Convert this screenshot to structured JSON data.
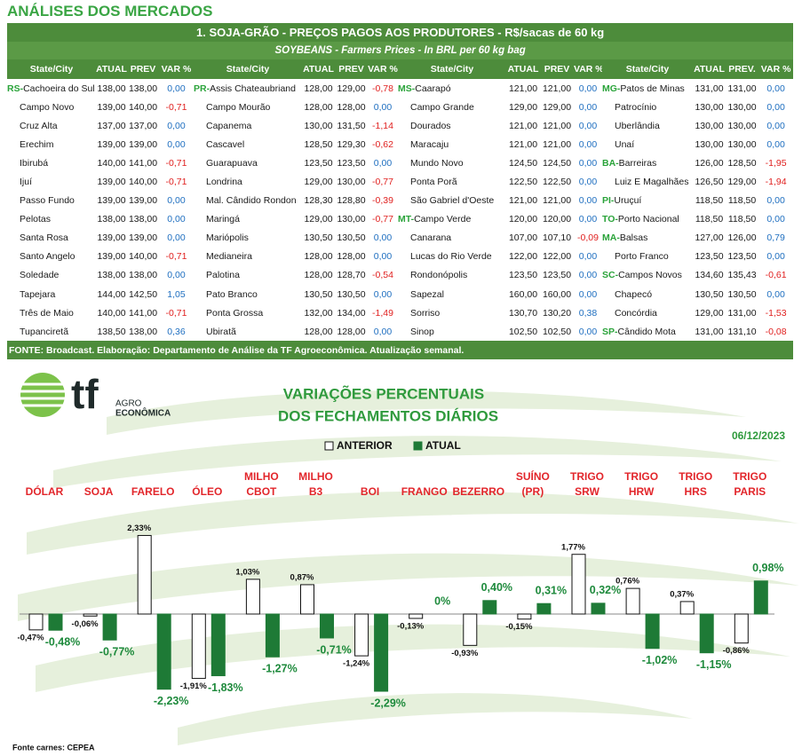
{
  "header": {
    "title": "ANÁLISES DOS MERCADOS"
  },
  "table": {
    "title": "1. SOJA-GRÃO - PREÇOS PAGOS AOS PRODUTORES - R$/sacas de 60 kg",
    "subtitle": "SOYBEANS - Farmers Prices - In BRL per 60 kg bag",
    "columns": [
      [
        "State/City",
        "ATUAL",
        "PREV",
        "VAR %"
      ],
      [
        "State/City",
        "ATUAL",
        "PREV",
        "VAR %"
      ],
      [
        "State/City",
        "ATUAL",
        "PREV",
        "VAR %"
      ],
      [
        "State/City",
        "ATUAL",
        "PREV.",
        "VAR %"
      ]
    ],
    "rows": [
      [
        {
          "state": "RS-",
          "city": "Cachoeira do Sul",
          "atual": "138,00",
          "prev": "138,00",
          "var": "0,00"
        },
        {
          "state": "PR-",
          "city": "Assis Chateaubriand",
          "atual": "128,00",
          "prev": "129,00",
          "var": "-0,78"
        },
        {
          "state": "MS-",
          "city": "Caarapó",
          "atual": "121,00",
          "prev": "121,00",
          "var": "0,00"
        },
        {
          "state": "MG-",
          "city": "Patos de Minas",
          "atual": "131,00",
          "prev": "131,00",
          "var": "0,00"
        }
      ],
      [
        {
          "city": "Campo Novo",
          "atual": "139,00",
          "prev": "140,00",
          "var": "-0,71"
        },
        {
          "city": "Campo Mourão",
          "atual": "128,00",
          "prev": "128,00",
          "var": "0,00"
        },
        {
          "city": "Campo Grande",
          "atual": "129,00",
          "prev": "129,00",
          "var": "0,00"
        },
        {
          "city": "Patrocínio",
          "atual": "130,00",
          "prev": "130,00",
          "var": "0,00"
        }
      ],
      [
        {
          "city": "Cruz Alta",
          "atual": "137,00",
          "prev": "137,00",
          "var": "0,00"
        },
        {
          "city": "Capanema",
          "atual": "130,00",
          "prev": "131,50",
          "var": "-1,14"
        },
        {
          "city": "Dourados",
          "atual": "121,00",
          "prev": "121,00",
          "var": "0,00"
        },
        {
          "city": "Uberlândia",
          "atual": "130,00",
          "prev": "130,00",
          "var": "0,00"
        }
      ],
      [
        {
          "city": "Erechim",
          "atual": "139,00",
          "prev": "139,00",
          "var": "0,00"
        },
        {
          "city": "Cascavel",
          "atual": "128,50",
          "prev": "129,30",
          "var": "-0,62"
        },
        {
          "city": "Maracaju",
          "atual": "121,00",
          "prev": "121,00",
          "var": "0,00"
        },
        {
          "city": "Unaí",
          "atual": "130,00",
          "prev": "130,00",
          "var": "0,00"
        }
      ],
      [
        {
          "city": "Ibirubá",
          "atual": "140,00",
          "prev": "141,00",
          "var": "-0,71"
        },
        {
          "city": "Guarapuava",
          "atual": "123,50",
          "prev": "123,50",
          "var": "0,00"
        },
        {
          "city": "Mundo Novo",
          "atual": "124,50",
          "prev": "124,50",
          "var": "0,00"
        },
        {
          "state": "BA-",
          "city": "Barreiras",
          "atual": "126,00",
          "prev": "128,50",
          "var": "-1,95"
        }
      ],
      [
        {
          "city": "Ijuí",
          "atual": "139,00",
          "prev": "140,00",
          "var": "-0,71"
        },
        {
          "city": "Londrina",
          "atual": "129,00",
          "prev": "130,00",
          "var": "-0,77"
        },
        {
          "city": "Ponta Porã",
          "atual": "122,50",
          "prev": "122,50",
          "var": "0,00"
        },
        {
          "city": "Luiz E Magalhães",
          "atual": "126,50",
          "prev": "129,00",
          "var": "-1,94"
        }
      ],
      [
        {
          "city": "Passo Fundo",
          "atual": "139,00",
          "prev": "139,00",
          "var": "0,00"
        },
        {
          "city": "Mal. Cândido Rondon",
          "atual": "128,30",
          "prev": "128,80",
          "var": "-0,39"
        },
        {
          "city": "São Gabriel d'Oeste",
          "atual": "121,00",
          "prev": "121,00",
          "var": "0,00"
        },
        {
          "state": "PI-",
          "city": "Uruçuí",
          "atual": "118,50",
          "prev": "118,50",
          "var": "0,00"
        }
      ],
      [
        {
          "city": "Pelotas",
          "atual": "138,00",
          "prev": "138,00",
          "var": "0,00"
        },
        {
          "city": "Maringá",
          "atual": "129,00",
          "prev": "130,00",
          "var": "-0,77"
        },
        {
          "state": "MT-",
          "city": "Campo Verde",
          "atual": "120,00",
          "prev": "120,00",
          "var": "0,00"
        },
        {
          "state": "TO-",
          "city": "Porto Nacional",
          "atual": "118,50",
          "prev": "118,50",
          "var": "0,00"
        }
      ],
      [
        {
          "city": "Santa Rosa",
          "atual": "139,00",
          "prev": "139,00",
          "var": "0,00"
        },
        {
          "city": "Mariópolis",
          "atual": "130,50",
          "prev": "130,50",
          "var": "0,00"
        },
        {
          "city": "Canarana",
          "atual": "107,00",
          "prev": "107,10",
          "var": "-0,09"
        },
        {
          "state": "MA-",
          "city": "Balsas",
          "atual": "127,00",
          "prev": "126,00",
          "var": "0,79"
        }
      ],
      [
        {
          "city": "Santo Angelo",
          "atual": "139,00",
          "prev": "140,00",
          "var": "-0,71"
        },
        {
          "city": "Medianeira",
          "atual": "128,00",
          "prev": "128,00",
          "var": "0,00"
        },
        {
          "city": "Lucas do Rio Verde",
          "atual": "122,00",
          "prev": "122,00",
          "var": "0,00"
        },
        {
          "city": "Porto Franco",
          "atual": "123,50",
          "prev": "123,50",
          "var": "0,00"
        }
      ],
      [
        {
          "city": "Soledade",
          "atual": "138,00",
          "prev": "138,00",
          "var": "0,00"
        },
        {
          "city": "Palotina",
          "atual": "128,00",
          "prev": "128,70",
          "var": "-0,54"
        },
        {
          "city": "Rondonópolis",
          "atual": "123,50",
          "prev": "123,50",
          "var": "0,00"
        },
        {
          "state": "SC-",
          "city": "Campos Novos",
          "atual": "134,60",
          "prev": "135,43",
          "var": "-0,61"
        }
      ],
      [
        {
          "city": "Tapejara",
          "atual": "144,00",
          "prev": "142,50",
          "var": "1,05"
        },
        {
          "city": "Pato Branco",
          "atual": "130,50",
          "prev": "130,50",
          "var": "0,00"
        },
        {
          "city": "Sapezal",
          "atual": "160,00",
          "prev": "160,00",
          "var": "0,00"
        },
        {
          "city": "Chapecó",
          "atual": "130,50",
          "prev": "130,50",
          "var": "0,00"
        }
      ],
      [
        {
          "city": "Três de Maio",
          "atual": "140,00",
          "prev": "141,00",
          "var": "-0,71"
        },
        {
          "city": "Ponta Grossa",
          "atual": "132,00",
          "prev": "134,00",
          "var": "-1,49"
        },
        {
          "city": "Sorriso",
          "atual": "130,70",
          "prev": "130,20",
          "var": "0,38"
        },
        {
          "city": "Concórdia",
          "atual": "129,00",
          "prev": "131,00",
          "var": "-1,53"
        }
      ],
      [
        {
          "city": "Tupanciretã",
          "atual": "138,50",
          "prev": "138,00",
          "var": "0,36"
        },
        {
          "city": "Ubiratã",
          "atual": "128,00",
          "prev": "128,00",
          "var": "0,00"
        },
        {
          "city": "Sinop",
          "atual": "102,50",
          "prev": "102,50",
          "var": "0,00"
        },
        {
          "state": "SP-",
          "city": "Cândido Mota",
          "atual": "131,00",
          "prev": "131,10",
          "var": "-0,08"
        }
      ]
    ],
    "footer": "FONTE: Broadcast. Elaboração: Departamento de Análise da TF Agroeconômica. Atualização semanal."
  },
  "logo": {
    "name": "tf",
    "line1": "AGRO",
    "line2": "ECONÔMICA"
  },
  "chart_data": {
    "type": "bar",
    "title": "VARIAÇÕES PERCENTUAIS",
    "subtitle": "DOS FECHAMENTOS DIÁRIOS",
    "date": "06/12/2023",
    "categories": [
      "DÓLAR",
      "SOJA",
      "FARELO",
      "ÓLEO",
      "MILHO\nCBOT",
      "MILHO\nB3",
      "BOI",
      "FRANGO",
      "BEZERRO",
      "SUÍNO\n(PR)",
      "TRIGO\nSRW",
      "TRIGO\nHRW",
      "TRIGO\nHRS",
      "TRIGO\nPARIS"
    ],
    "series": [
      {
        "name": "ANTERIOR",
        "color": "#ffffff",
        "values": [
          -0.47,
          -0.06,
          2.33,
          -1.91,
          1.03,
          0.87,
          -1.24,
          -0.13,
          -0.93,
          -0.15,
          1.77,
          0.76,
          0.37,
          -0.86
        ],
        "value_labels": [
          "-0,47%",
          "-0,06%",
          "2,33%",
          "-1,91%",
          "1,03%",
          "0,87%",
          "-1,24%",
          "-0,13%",
          "-0,93%",
          "-0,15%",
          "1,77%",
          "0,76%",
          "0,37%",
          "-0,86%"
        ]
      },
      {
        "name": "ATUAL",
        "color": "#1e7a36",
        "values": [
          -0.48,
          -0.77,
          -2.23,
          -1.83,
          -1.27,
          -0.71,
          -2.29,
          0,
          0.4,
          0.31,
          0.32,
          -1.02,
          -1.15,
          0.98
        ],
        "value_labels": [
          "-0,48%",
          "-0,77%",
          "-2,23%",
          "-1,83%",
          "-1,27%",
          "-0,71%",
          "-2,29%",
          "0%",
          "0,40%",
          "0,31%",
          "0,32%",
          "-1,02%",
          "-1,15%",
          "0,98%"
        ]
      }
    ],
    "ylim": [
      -2.5,
      2.5
    ],
    "source": "Fonte carnes: CEPEA"
  }
}
